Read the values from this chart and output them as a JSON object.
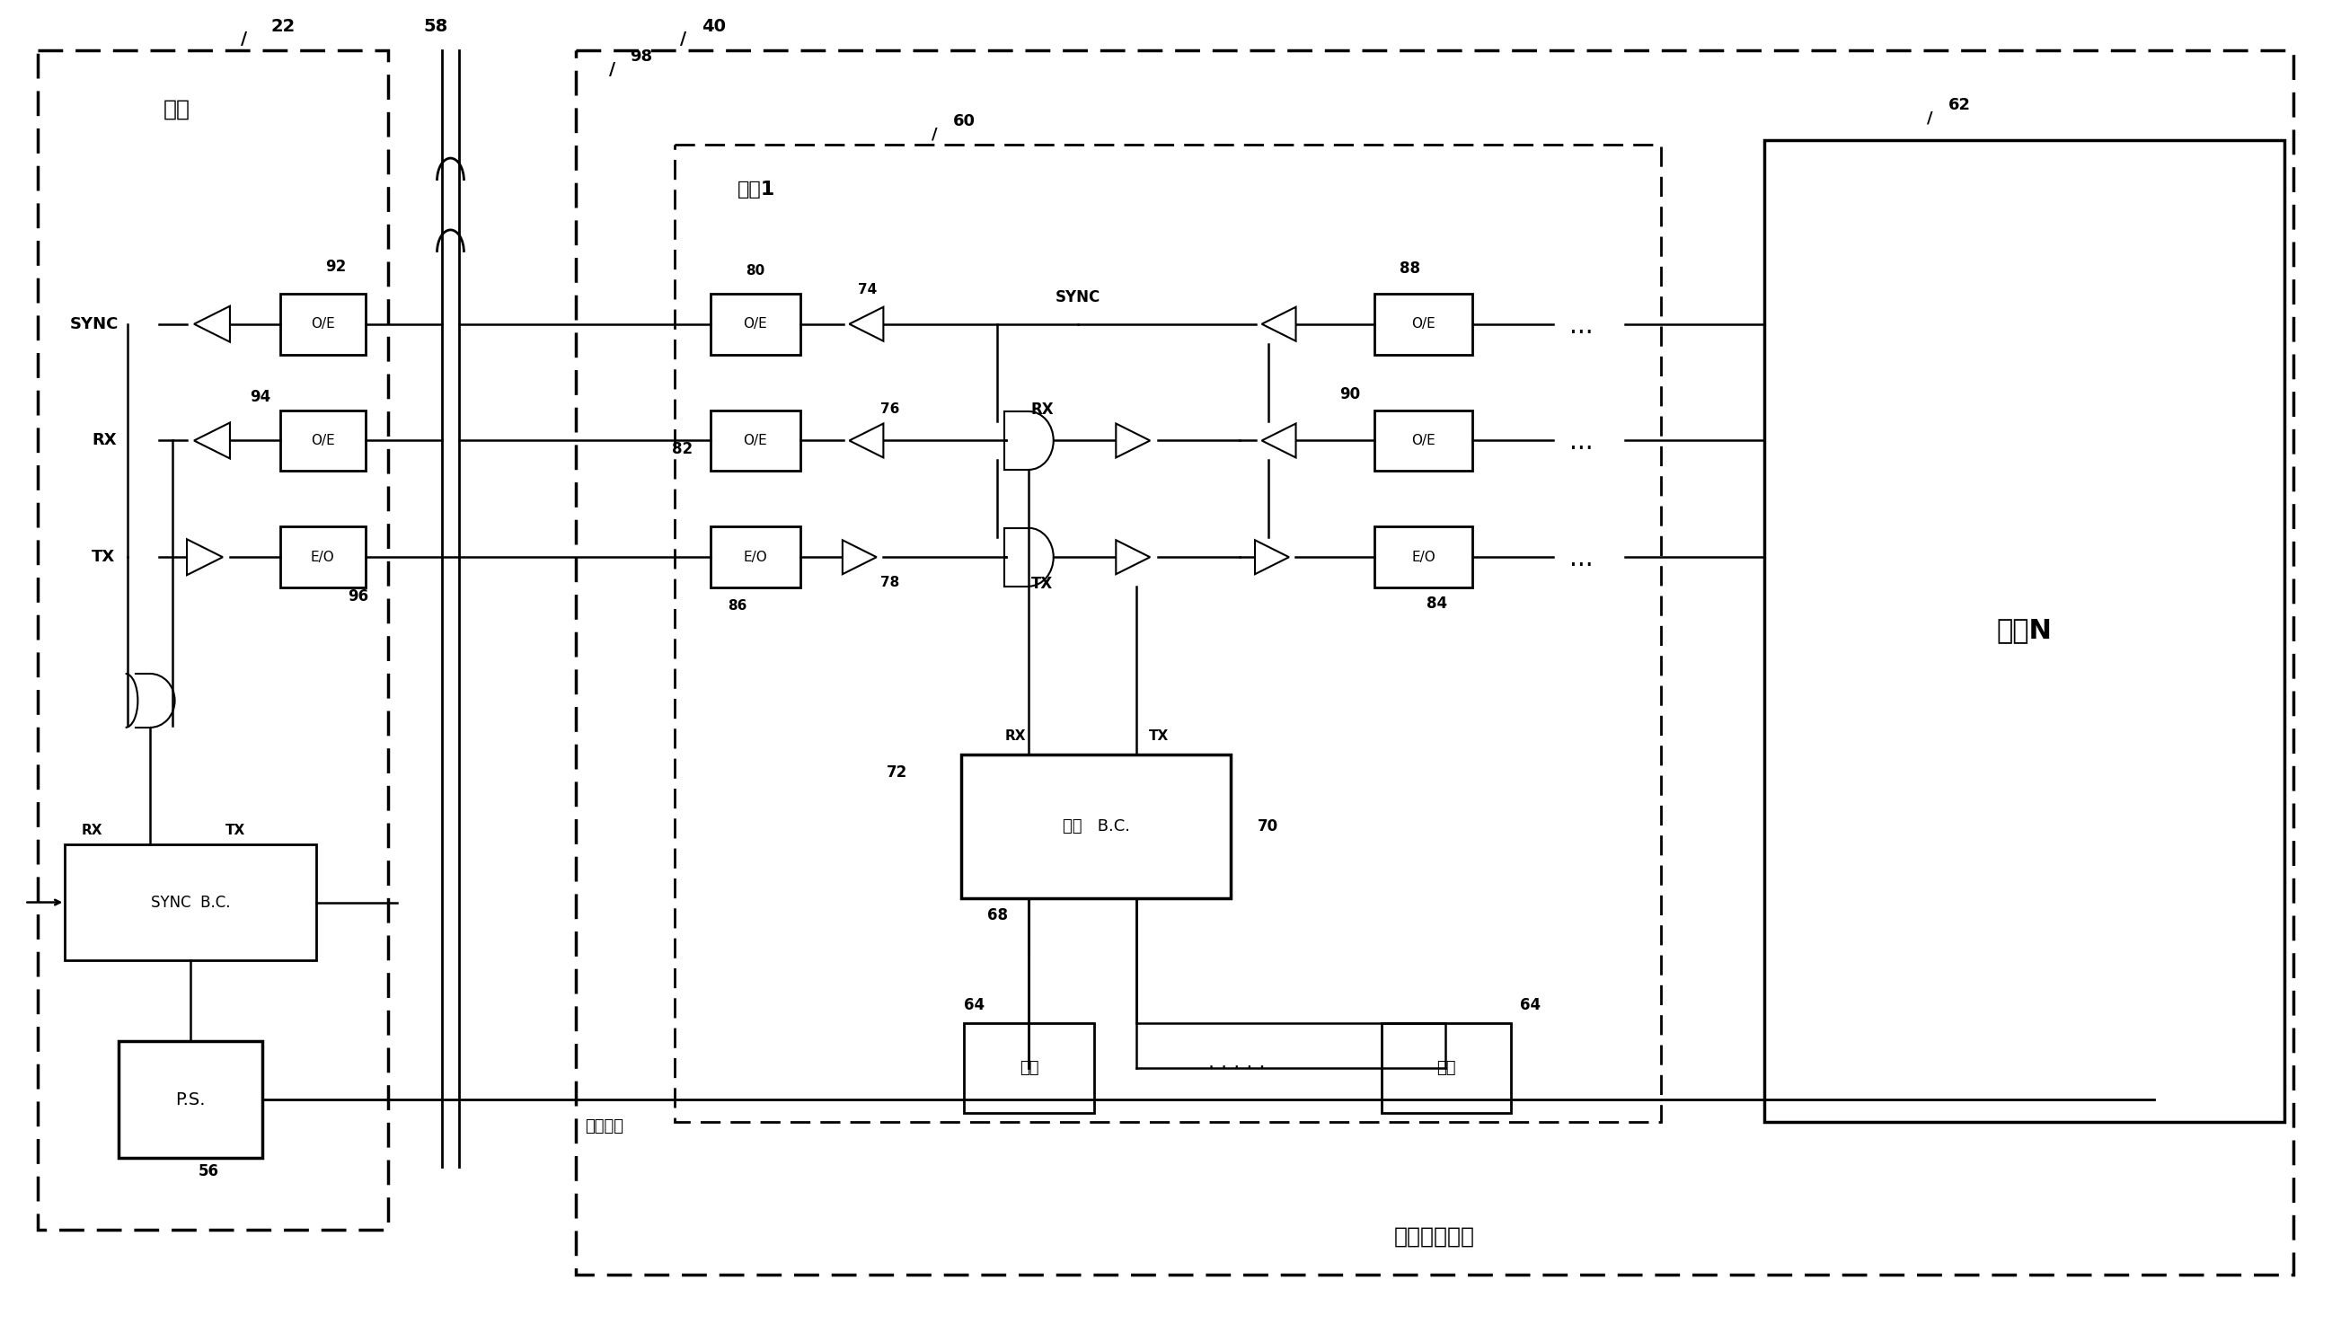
{
  "bg_color": "#ffffff",
  "fig_width": 25.96,
  "fig_height": 14.94,
  "labels": {
    "host_label": "主机",
    "module1_label": "模块1",
    "moduleN_label": "模块N",
    "precision_label": "精密测量装置",
    "energy_label": "能量轨道",
    "sync_host": "SYNC",
    "rx_host": "RX",
    "tx_host": "TX",
    "sync_mod1": "SYNC",
    "rx_mod1": "RX",
    "tx_mod1": "TX",
    "oe_92": "O/E",
    "oe_94": "O/E",
    "eo_96": "E/O",
    "oe_80": "O/E",
    "oe_82a": "O/E",
    "eo_86": "E/O",
    "oe_88": "O/E",
    "oe_90": "O/E",
    "eo_84": "E/O",
    "sync_bc_host": "SYNC  B.C.",
    "sync_bc_mod1": "同步   B.C.",
    "ps_label": "P.S.",
    "equip_label": "设备"
  },
  "ref_nums": {
    "n22": "22",
    "n40": "40",
    "n56": "56",
    "n58": "58",
    "n60": "60",
    "n62": "62",
    "n64a": "64",
    "n64b": "64",
    "n68": "68",
    "n70": "70",
    "n72": "72",
    "n74": "74",
    "n76": "76",
    "n78": "78",
    "n80": "80",
    "n82": "82",
    "n84": "84",
    "n86": "86",
    "n88": "88",
    "n90": "90",
    "n92": "92",
    "n94": "94",
    "n96": "96",
    "n98": "98"
  }
}
